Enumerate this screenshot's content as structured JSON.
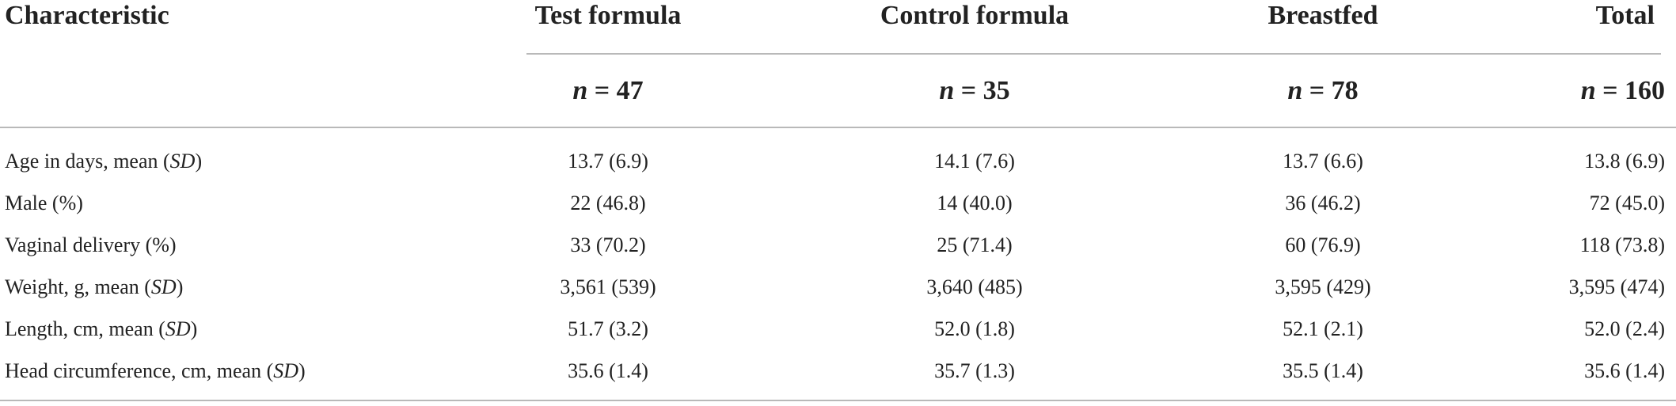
{
  "table": {
    "columns": [
      {
        "label": "Characteristic",
        "n": ""
      },
      {
        "label": "Test formula",
        "n": "47"
      },
      {
        "label": "Control formula",
        "n": "35"
      },
      {
        "label": "Breastfed",
        "n": "78"
      },
      {
        "label": "Total",
        "n": "160"
      }
    ],
    "n_symbol": "n",
    "n_equals": " = ",
    "rows": [
      {
        "pre": "Age in days, mean (",
        "ital": "SD",
        "post": ")",
        "values": [
          "13.7 (6.9)",
          "14.1 (7.6)",
          "13.7 (6.6)",
          "13.8 (6.9)"
        ]
      },
      {
        "pre": "Male (%)",
        "ital": "",
        "post": "",
        "values": [
          "22 (46.8)",
          "14 (40.0)",
          "36 (46.2)",
          "72 (45.0)"
        ]
      },
      {
        "pre": "Vaginal delivery (%)",
        "ital": "",
        "post": "",
        "values": [
          "33 (70.2)",
          "25 (71.4)",
          "60 (76.9)",
          "118 (73.8)"
        ]
      },
      {
        "pre": "Weight, g, mean (",
        "ital": "SD",
        "post": ")",
        "values": [
          "3,561 (539)",
          "3,640 (485)",
          "3,595 (429)",
          "3,595 (474)"
        ]
      },
      {
        "pre": "Length, cm, mean (",
        "ital": "SD",
        "post": ")",
        "values": [
          "51.7 (3.2)",
          "52.0 (1.8)",
          "52.1 (2.1)",
          "52.0 (2.4)"
        ]
      },
      {
        "pre": "Head circumference, cm, mean (",
        "ital": "SD",
        "post": ")",
        "values": [
          "35.6 (1.4)",
          "35.7 (1.3)",
          "35.5 (1.4)",
          "35.6 (1.4)"
        ]
      }
    ]
  }
}
